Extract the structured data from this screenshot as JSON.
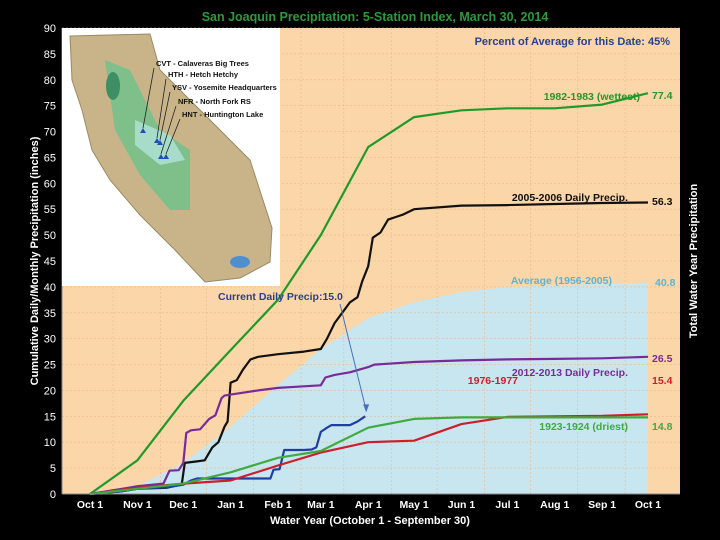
{
  "chart_data": {
    "type": "line",
    "title": "San Joaquin Precipitation: 5-Station Index, March 30, 2014",
    "subtitle": "Percent of Average for this Date: 45%",
    "xlabel": "Water Year (October 1 - September 30)",
    "ylabel": "Cumulative Daily/Monthly Precipitation (inches)",
    "ylabel_right": "Total Water Year Precipitation",
    "ylim": [
      0,
      90
    ],
    "yticks": [
      0,
      5,
      10,
      15,
      20,
      25,
      30,
      35,
      40,
      45,
      50,
      55,
      60,
      65,
      70,
      75,
      80,
      85,
      90
    ],
    "x_unit": "days since Oct 1",
    "xlim": [
      0,
      365
    ],
    "xticks": [
      {
        "label": "Oct 1",
        "day": 0
      },
      {
        "label": "Nov 1",
        "day": 31
      },
      {
        "label": "Dec 1",
        "day": 61
      },
      {
        "label": "Jan 1",
        "day": 92
      },
      {
        "label": "Feb 1",
        "day": 123
      },
      {
        "label": "Mar 1",
        "day": 151
      },
      {
        "label": "Apr 1",
        "day": 182
      },
      {
        "label": "May 1",
        "day": 212
      },
      {
        "label": "Jun 1",
        "day": 243
      },
      {
        "label": "Jul 1",
        "day": 273
      },
      {
        "label": "Aug 1",
        "day": 304
      },
      {
        "label": "Sep 1",
        "day": 335
      },
      {
        "label": "Oct 1",
        "day": 365
      }
    ],
    "grid": true,
    "series": [
      {
        "name": "Average (1956-2005)",
        "style": "area",
        "color": "#c8e6f0",
        "label_color": "#5ab4d8",
        "end_label": "40.8",
        "x": [
          0,
          31,
          61,
          92,
          123,
          151,
          182,
          212,
          243,
          273,
          304,
          335,
          365
        ],
        "y": [
          0,
          1.5,
          6,
          13,
          21,
          28,
          34,
          37,
          39,
          40,
          40.3,
          40.6,
          40.8
        ]
      },
      {
        "name": "1982-1983 (wettest)",
        "color": "#1f9a2a",
        "label_color": "#1f9a2a",
        "end_label": "77.4",
        "x": [
          0,
          31,
          61,
          92,
          123,
          151,
          182,
          212,
          243,
          273,
          304,
          335,
          365
        ],
        "y": [
          0,
          6.5,
          18,
          27.8,
          37.5,
          50,
          67,
          72.8,
          74.1,
          74.5,
          74.5,
          75.2,
          77.4
        ]
      },
      {
        "name": "2005-2006 Daily Precip.",
        "color": "#111111",
        "label_color": "#111111",
        "end_label": "56.3",
        "x": [
          0,
          20,
          31,
          50,
          55,
          60,
          62,
          70,
          75,
          80,
          84,
          88,
          90,
          92,
          96,
          100,
          105,
          110,
          123,
          140,
          151,
          155,
          160,
          165,
          170,
          175,
          178,
          182,
          185,
          190,
          195,
          200,
          205,
          212,
          243,
          273,
          304,
          335,
          365
        ],
        "y": [
          0,
          0.5,
          1,
          1.2,
          1.5,
          1.8,
          6,
          6.3,
          6.5,
          9,
          10,
          13,
          14,
          21.5,
          22,
          24,
          26,
          26.5,
          27,
          27.5,
          28,
          30,
          33,
          35,
          37,
          38,
          41,
          44,
          49.5,
          50.5,
          53,
          53.5,
          54,
          55,
          55.7,
          55.8,
          56,
          56.2,
          56.3
        ]
      },
      {
        "name": "2012-2013 Daily Precip.",
        "color": "#7a2a98",
        "label_color": "#7a2a98",
        "end_label": "26.5",
        "x": [
          0,
          25,
          31,
          48,
          52,
          58,
          61,
          63,
          66,
          72,
          78,
          82,
          86,
          88,
          92,
          110,
          123,
          140,
          151,
          154,
          160,
          170,
          182,
          186,
          212,
          243,
          273,
          304,
          335,
          365
        ],
        "y": [
          0,
          1.2,
          1.5,
          2,
          4.5,
          4.6,
          6,
          11.8,
          12.3,
          12.5,
          14.5,
          15.2,
          18.5,
          19,
          19.2,
          20,
          20.5,
          20.8,
          21,
          22.5,
          23,
          23.5,
          24.5,
          25,
          25.5,
          25.8,
          26,
          26.1,
          26.2,
          26.5
        ]
      },
      {
        "name": "Current Daily Precip",
        "color": "#1e3fa0",
        "label_color": "#1e3fa0",
        "end_label": "",
        "x": [
          0,
          20,
          31,
          50,
          61,
          66,
          70,
          92,
          110,
          118,
          120,
          124,
          127,
          140,
          145,
          148,
          151,
          155,
          158,
          170,
          175,
          180
        ],
        "y": [
          0,
          0.5,
          1,
          1.3,
          1.8,
          2.6,
          3,
          3,
          3,
          3,
          4.7,
          4.8,
          8.5,
          8.5,
          8.6,
          9,
          12,
          12.8,
          13.3,
          13.3,
          14,
          15
        ]
      },
      {
        "name": "1976-1977",
        "color": "#cc1f2a",
        "label_color": "#cc1f2a",
        "end_label": "15.4",
        "x": [
          0,
          31,
          61,
          92,
          123,
          151,
          182,
          212,
          243,
          273,
          304,
          335,
          365
        ],
        "y": [
          0,
          1.2,
          2,
          2.6,
          5.5,
          8,
          10,
          10.3,
          13.5,
          14.9,
          15,
          15.1,
          15.4
        ]
      },
      {
        "name": "1923-1924 (driest)",
        "color": "#3faa3f",
        "label_color": "#3faa3f",
        "end_label": "14.8",
        "x": [
          0,
          31,
          61,
          92,
          123,
          151,
          182,
          212,
          243,
          273,
          304,
          335,
          365
        ],
        "y": [
          0,
          1,
          2,
          4.2,
          7,
          8.3,
          12.8,
          14.5,
          14.8,
          14.8,
          14.8,
          14.8,
          14.8
        ]
      }
    ],
    "annotations": [
      {
        "text": "Current Daily Precip:15.0",
        "points_to_day": 180,
        "points_to_value": 15
      }
    ]
  },
  "inset_map": {
    "stations": [
      "CVT - Calaveras Big Trees",
      "HTH - Hetch Hetchy",
      "YSV - Yosemite Headquarters",
      "NFR - North Fork RS",
      "HNT - Huntington Lake"
    ]
  }
}
